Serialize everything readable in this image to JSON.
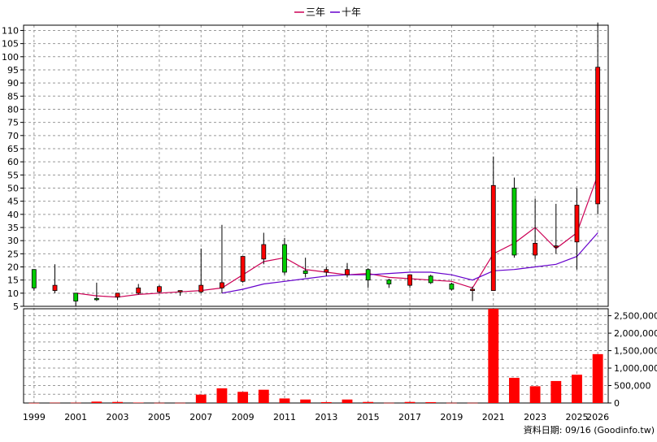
{
  "legend": {
    "ma3": "三年",
    "ma10": "十年"
  },
  "footer": "資料日期: 09/16 (Goodinfo.tw)",
  "colors": {
    "up": "#ff0000",
    "down": "#00cc00",
    "wick": "#000000",
    "ma3": "#cc0055",
    "ma10": "#6600cc",
    "volume": "#ff0000",
    "grid": "#999999"
  },
  "chart_data": [
    {
      "type": "candlestick",
      "title": "",
      "x": [
        1999,
        2000,
        2001,
        2002,
        2003,
        2004,
        2005,
        2006,
        2007,
        2008,
        2009,
        2010,
        2011,
        2012,
        2013,
        2014,
        2015,
        2016,
        2017,
        2018,
        2019,
        2020,
        2021,
        2022,
        2023,
        2024,
        2025,
        2026
      ],
      "x_tick_labels": [
        "1999",
        "2001",
        "2003",
        "2005",
        "2007",
        "2009",
        "2011",
        "2013",
        "2015",
        "2017",
        "2019",
        "2021",
        "2023",
        "2025",
        "2026"
      ],
      "ylim": [
        5,
        112
      ],
      "y_ticks": [
        5,
        10,
        15,
        20,
        25,
        30,
        35,
        40,
        45,
        50,
        55,
        60,
        65,
        70,
        75,
        80,
        85,
        90,
        95,
        100,
        105,
        110
      ],
      "grid": true,
      "legend_position": "top",
      "open": [
        19.0,
        11.0,
        10.0,
        8.0,
        8.5,
        10.0,
        10.5,
        10.5,
        10.5,
        12.0,
        14.5,
        23.0,
        28.5,
        18.5,
        18.0,
        17.0,
        19.0,
        15.0,
        13.0,
        16.5,
        13.5,
        11.0,
        11.0,
        50.0,
        24.5,
        28.0,
        29.5,
        44.0
      ],
      "close": [
        12.0,
        13.0,
        7.0,
        7.5,
        10.0,
        12.0,
        12.5,
        11.0,
        13.0,
        14.0,
        24.0,
        28.5,
        18.0,
        17.5,
        19.0,
        19.0,
        15.0,
        13.5,
        17.0,
        14.0,
        11.5,
        11.5,
        51.0,
        24.5,
        29.0,
        28.0,
        43.5,
        96.0
      ],
      "high": [
        19.0,
        21.0,
        10.0,
        14.0,
        10.0,
        13.5,
        13.0,
        11.0,
        27.0,
        36.0,
        24.0,
        33.0,
        31.0,
        23.5,
        20.0,
        21.5,
        19.5,
        15.5,
        17.0,
        17.0,
        14.0,
        12.5,
        62.0,
        54.0,
        46.0,
        44.0,
        50.0,
        113.0
      ],
      "low": [
        11.0,
        10.0,
        5.0,
        7.0,
        7.5,
        9.5,
        10.0,
        9.0,
        10.0,
        10.0,
        14.0,
        21.0,
        17.0,
        16.0,
        16.5,
        16.0,
        12.0,
        12.0,
        12.0,
        13.5,
        11.0,
        7.0,
        11.0,
        23.5,
        23.0,
        25.0,
        19.0,
        40.0
      ],
      "series": [
        {
          "name": "三年",
          "values": [
            null,
            null,
            10.0,
            9.0,
            8.5,
            9.5,
            10.0,
            10.5,
            11.0,
            12.0,
            17.0,
            22.0,
            23.5,
            19.0,
            18.0,
            17.0,
            17.5,
            16.0,
            15.5,
            15.0,
            14.5,
            12.0,
            25.0,
            29.0,
            35.0,
            27.0,
            33.0,
            55.0
          ]
        },
        {
          "name": "十年",
          "values": [
            null,
            null,
            null,
            null,
            null,
            null,
            null,
            null,
            null,
            10.0,
            11.5,
            13.5,
            14.5,
            15.5,
            16.5,
            17.0,
            17.0,
            17.5,
            18.0,
            18.0,
            17.0,
            15.0,
            18.5,
            19.0,
            20.0,
            21.0,
            24.0,
            33.0
          ]
        }
      ]
    },
    {
      "type": "bar",
      "title": "",
      "x": [
        1999,
        2000,
        2001,
        2002,
        2003,
        2004,
        2005,
        2006,
        2007,
        2008,
        2009,
        2010,
        2011,
        2012,
        2013,
        2014,
        2015,
        2016,
        2017,
        2018,
        2019,
        2020,
        2021,
        2022,
        2023,
        2024,
        2025,
        2026
      ],
      "values": [
        3000,
        8000,
        8000,
        40000,
        30000,
        10000,
        5000,
        5000,
        240000,
        420000,
        320000,
        380000,
        130000,
        100000,
        25000,
        100000,
        30000,
        5000,
        30000,
        25000,
        5000,
        5000,
        2700000,
        720000,
        480000,
        630000,
        810000,
        1400000
      ],
      "ylim": [
        0,
        2700000
      ],
      "y_ticks": [
        0,
        500000,
        1000000,
        1500000,
        2000000,
        2500000
      ],
      "y_tick_labels": [
        "0",
        "500,000",
        "1,000,000",
        "1,500,000",
        "2,000,000",
        "2,500,000"
      ],
      "grid": true
    }
  ]
}
